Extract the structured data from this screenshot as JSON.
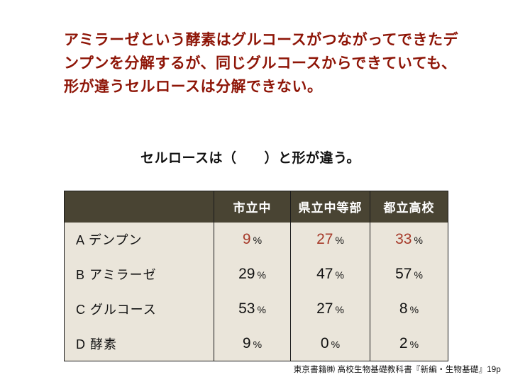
{
  "paragraph": "アミラーゼという酵素はグルコースがつながってできたデンプンを分解するが、同じグルコースからできていても、形が違うセルロースは分解できない。",
  "question": "セルロースは（　　）と形が違う。",
  "table": {
    "headers": [
      "",
      "市立中",
      "県立中等部",
      "都立高校"
    ],
    "percent_sign": "%",
    "rows": [
      {
        "label": "A デンプン",
        "values": [
          "9",
          "27",
          "33"
        ]
      },
      {
        "label": "B アミラーゼ",
        "values": [
          "29",
          "47",
          "57"
        ]
      },
      {
        "label": "C グルコース",
        "values": [
          "53",
          "27",
          "8"
        ]
      },
      {
        "label": "D 酵素",
        "values": [
          "9",
          "0",
          "2"
        ]
      }
    ]
  },
  "caption": "東京書籍㈱ 高校生物基礎教科書『新編・生物基礎』19p",
  "colors": {
    "accent_text": "#8E1507",
    "highlight_num": "#A63A2A",
    "header_bg": "#494433",
    "header_text": "#FFFFFF",
    "body_bg": "#EAE5DA",
    "border": "#1A1A1A"
  }
}
